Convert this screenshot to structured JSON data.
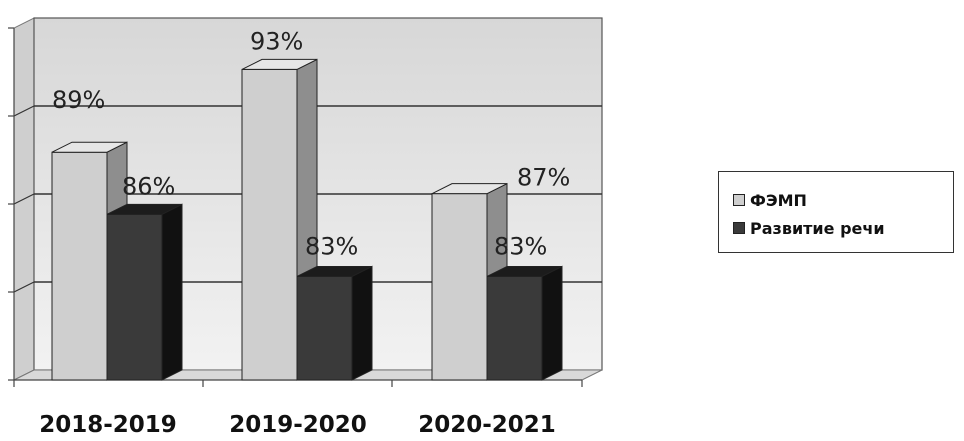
{
  "chart_data": {
    "type": "bar",
    "categories": [
      "2018-2019",
      "2019-2020",
      "2020-2021"
    ],
    "series": [
      {
        "name": "ФЭМП",
        "values": [
          89,
          93,
          87
        ],
        "labels": [
          "89%",
          "93%",
          "87%"
        ],
        "color": "#cfcfcf"
      },
      {
        "name": "Развитие речи",
        "values": [
          86,
          83,
          83
        ],
        "labels": [
          "86%",
          "83%",
          "83%"
        ],
        "color": "#3a3a3a"
      }
    ],
    "ylim": [
      78,
      95
    ],
    "grid": true,
    "legend": "right"
  }
}
